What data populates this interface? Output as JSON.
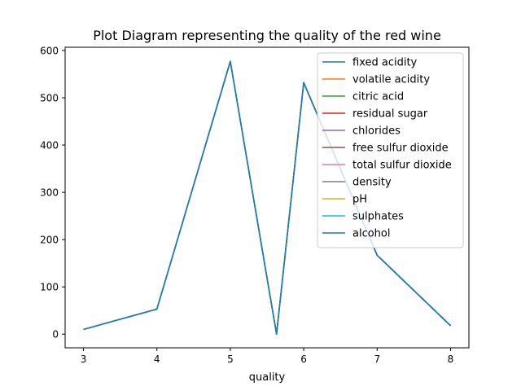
{
  "chart_data": {
    "type": "line",
    "title": "Plot Diagram representing the quality of the red wine",
    "xlabel": "quality",
    "ylabel": "",
    "xlim": [
      2.75,
      8.25
    ],
    "ylim": [
      -28.9,
      606.9
    ],
    "x_ticks": [
      "3",
      "4",
      "5",
      "6",
      "7",
      "8"
    ],
    "y_ticks": [
      "0",
      "100",
      "200",
      "300",
      "400",
      "500",
      "600"
    ],
    "x": [
      3,
      4,
      5,
      5.63,
      6,
      7,
      8
    ],
    "series": [
      {
        "name": "fixed acidity",
        "color": "#1f77b4",
        "values": [
          10,
          53,
          577,
          0,
          532,
          167,
          18
        ]
      },
      {
        "name": "volatile acidity",
        "color": "#ff7f0e",
        "values": [
          10,
          53,
          577,
          0,
          532,
          167,
          18
        ]
      },
      {
        "name": "citric acid",
        "color": "#2ca02c",
        "values": [
          10,
          53,
          577,
          0,
          532,
          167,
          18
        ]
      },
      {
        "name": "residual sugar",
        "color": "#d62728",
        "values": [
          10,
          53,
          577,
          0,
          532,
          167,
          18
        ]
      },
      {
        "name": "chlorides",
        "color": "#9467bd",
        "values": [
          10,
          53,
          577,
          0,
          532,
          167,
          18
        ]
      },
      {
        "name": "free sulfur dioxide",
        "color": "#8c564b",
        "values": [
          10,
          53,
          577,
          0,
          532,
          167,
          18
        ]
      },
      {
        "name": "total sulfur dioxide",
        "color": "#e377c2",
        "values": [
          10,
          53,
          577,
          0,
          532,
          167,
          18
        ]
      },
      {
        "name": "density",
        "color": "#7f7f7f",
        "values": [
          10,
          53,
          577,
          0,
          532,
          167,
          18
        ]
      },
      {
        "name": "pH",
        "color": "#bcbd22",
        "values": [
          10,
          53,
          577,
          0,
          532,
          167,
          18
        ]
      },
      {
        "name": "sulphates",
        "color": "#17becf",
        "values": [
          10,
          53,
          577,
          0,
          532,
          167,
          18
        ]
      },
      {
        "name": "alcohol",
        "color": "#1f77b4",
        "values": [
          10,
          53,
          577,
          0,
          532,
          167,
          18
        ]
      }
    ],
    "grid": false,
    "legend_position": "top-right"
  }
}
